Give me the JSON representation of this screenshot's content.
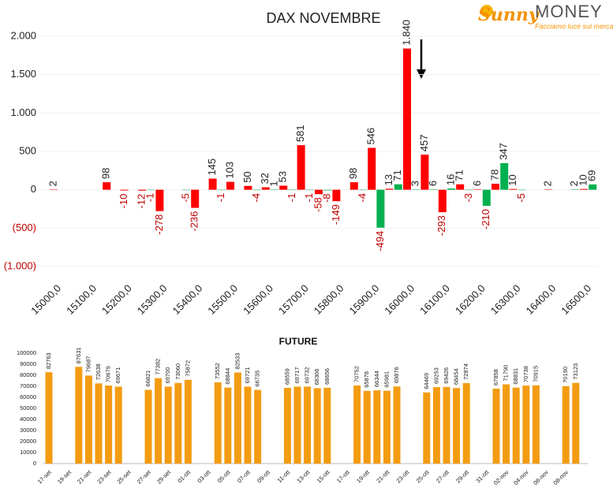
{
  "logo": {
    "brand": "Sunny",
    "name": "MONEY",
    "tagline": "Facciamo luce sui mercati"
  },
  "chart_data": [
    {
      "type": "bar",
      "title": "DAX NOVEMBRE",
      "categories": [
        "15000,0",
        null,
        "15100,0",
        null,
        "15200,0",
        null,
        "15300,0",
        null,
        "15400,0",
        null,
        "15500,0",
        null,
        "15600,0",
        null,
        "15700,0",
        null,
        "15800,0",
        null,
        "15900,0",
        null,
        "16000,0",
        null,
        "16100,0",
        null,
        "16200,0",
        null,
        "16300,0",
        null,
        "16400,0",
        null,
        "16500,0"
      ],
      "series": [
        {
          "color": "#ff0000",
          "values": [
            2,
            null,
            null,
            98,
            -10,
            -12,
            -278,
            null,
            -236,
            145,
            103,
            50,
            32,
            53,
            581,
            -58,
            -149,
            98,
            546,
            13,
            1840,
            457,
            -293,
            71,
            6,
            78,
            10,
            null,
            2,
            null,
            10
          ],
          "value_labels": [
            "2",
            null,
            null,
            "98",
            "-10",
            "-12",
            "-278",
            null,
            "-236",
            "145",
            "103",
            "50",
            "32",
            "53",
            "581",
            "-58",
            "-149",
            "98",
            "546",
            "13",
            "1.840",
            "457",
            "-293",
            "71",
            "6",
            "78",
            "10",
            null,
            "2",
            null,
            "10"
          ]
        },
        {
          "color": "#00b050",
          "values": [
            null,
            null,
            null,
            null,
            null,
            -1,
            null,
            -5,
            null,
            -1,
            null,
            -4,
            1,
            -1,
            -1,
            -8,
            null,
            -4,
            -494,
            71,
            3,
            6,
            16,
            -3,
            -210,
            347,
            -5,
            null,
            null,
            2,
            69
          ],
          "value_labels": [
            null,
            null,
            null,
            null,
            null,
            "-1",
            null,
            "-5",
            null,
            "-1",
            null,
            "-4",
            "1",
            "-1",
            "-1",
            "-8",
            null,
            "-4",
            "-494",
            "71",
            "3",
            "6",
            "16",
            "-3",
            "-210",
            "347",
            "-5",
            null,
            null,
            "2",
            "69"
          ]
        }
      ],
      "ylim": [
        -1000,
        2000
      ],
      "yticks": [
        {
          "value": 2000,
          "label": "2.000"
        },
        {
          "value": 1500,
          "label": "1.500"
        },
        {
          "value": 1000,
          "label": "1.000"
        },
        500,
        0,
        {
          "value": -500,
          "label": "(500)"
        },
        {
          "value": -1000,
          "label": "(1.000)"
        }
      ],
      "grid": true
    },
    {
      "type": "bar",
      "title": "FUTURE",
      "categories": [
        "17-set",
        null,
        "19-set",
        null,
        "21-set",
        null,
        "23-set",
        null,
        "25-set",
        null,
        "27-set",
        null,
        "29-set",
        null,
        "01-ott",
        null,
        "03-ott",
        null,
        "05-ott",
        null,
        "07-ott",
        null,
        "09-ott",
        null,
        "11-ott",
        null,
        "13-ott",
        null,
        "15-ott",
        null,
        "17-ott",
        null,
        "19-ott",
        null,
        "21-ott",
        null,
        "23-ott",
        null,
        "25-ott",
        null,
        "27-ott",
        null,
        "29-ott",
        null,
        "31-ott",
        null,
        "02-nov",
        null,
        "04-nov",
        null,
        "06-nov",
        null,
        "08-nov",
        null
      ],
      "values": [
        82763,
        null,
        null,
        87631,
        79687,
        72638,
        70679,
        69671,
        null,
        null,
        66821,
        77382,
        69700,
        73060,
        75872,
        null,
        null,
        73552,
        68844,
        82533,
        69721,
        66735,
        null,
        null,
        68559,
        69717,
        69732,
        68306,
        68656,
        null,
        null,
        70752,
        65878,
        66344,
        65981,
        69876,
        null,
        null,
        64469,
        69253,
        69426,
        68454,
        72874,
        null,
        null,
        67858,
        71790,
        68831,
        70738,
        70915,
        null,
        null,
        70190,
        73123
      ],
      "color": "#f39c12",
      "ylim": [
        0,
        100000
      ],
      "yticks": [
        0,
        10000,
        20000,
        30000,
        40000,
        50000,
        60000,
        70000,
        80000,
        90000,
        100000
      ],
      "grid": false
    }
  ]
}
